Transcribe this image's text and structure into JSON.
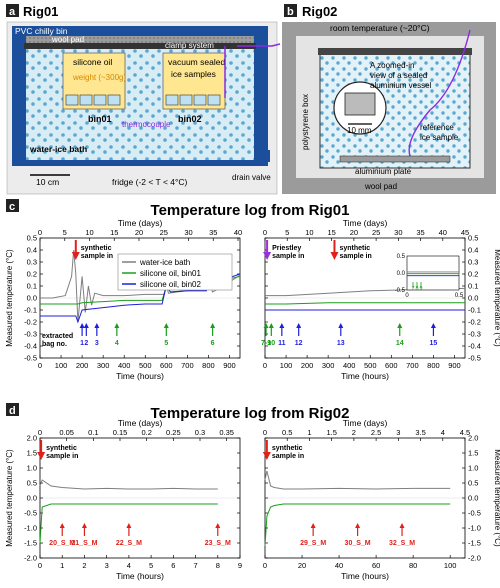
{
  "panels": {
    "a": {
      "letter": "a",
      "title": "Rig01",
      "bin": "PVC chilly bin",
      "wool": "wool pad",
      "clamp": "clamp system",
      "oil": "silicone oil",
      "weight": "weight (~300g)",
      "vac": "vacuum sealed",
      "ice": "ice samples",
      "bin01": "bin01",
      "bin02": "bin02",
      "tc": "thermocouple",
      "bath": "water-ice bath",
      "scale": "10 cm",
      "fridge": "fridge (-2 < T < 4°C)",
      "drain": "drain valve"
    },
    "b": {
      "letter": "b",
      "title": "Rig02",
      "room": "room temperature (~20°C)",
      "box": "polystyrene box",
      "zoom1": "A zoomed-in",
      "zoom2": "view of a sealed",
      "zoom3": "aluminium vessel",
      "mm": "10 mm",
      "ref1": "reference",
      "ref2": "ice sample",
      "plate": "aluminium plate",
      "wool": "wool pad"
    },
    "c": {
      "letter": "c",
      "title": "Temperature log from Rig01"
    },
    "d": {
      "letter": "d",
      "title": "Temperature log from Rig02"
    }
  },
  "colors": {
    "water": "#7f7f7f",
    "bin01": "#1a9e1a",
    "bin02": "#1f1fdb",
    "synthetic": "#e0201a",
    "priestley": "#9b30d9",
    "accent": "#8a2be2",
    "frame": "#1b4f9c"
  },
  "chart_data": [
    {
      "type": "line",
      "id": "c-left",
      "xlabel": "Time (hours)",
      "x2label": "Time (days)",
      "ylabel": "Measured temperature (°C)",
      "xlim": [
        0,
        950
      ],
      "ylim": [
        -0.5,
        0.5
      ],
      "xticks": [
        0,
        100,
        200,
        300,
        400,
        500,
        600,
        700,
        800,
        900
      ],
      "x2ticks": [
        0,
        5,
        10,
        15,
        20,
        25,
        30,
        35,
        40
      ],
      "yticks": [
        -0.5,
        -0.4,
        -0.3,
        -0.2,
        -0.1,
        0.0,
        0.1,
        0.2,
        0.3,
        0.4,
        0.5
      ],
      "legend": [
        "water-ice bath",
        "silicone oil, bin01",
        "silicone oil, bin02"
      ],
      "series": [
        {
          "name": "water-ice bath",
          "x": [
            0,
            60,
            120,
            150,
            160,
            170,
            180,
            200,
            215,
            230,
            245,
            260,
            300,
            400,
            500,
            590,
            600,
            610,
            650,
            700,
            760,
            790,
            800,
            820,
            870,
            950
          ],
          "y": [
            0.0,
            0.0,
            0.02,
            0.18,
            0.4,
            0.2,
            -0.2,
            0.18,
            -0.12,
            0.1,
            -0.06,
            0.04,
            0.02,
            0.02,
            0.03,
            0.03,
            0.12,
            0.04,
            0.05,
            0.06,
            0.07,
            0.1,
            0.16,
            0.05,
            0.1,
            0.19
          ]
        },
        {
          "name": "silicone oil, bin01",
          "x": [
            0,
            100,
            160,
            180,
            200,
            300,
            400,
            500,
            580,
            600,
            620,
            700,
            790,
            800,
            820,
            900,
            950
          ],
          "y": [
            -0.05,
            -0.05,
            -0.05,
            -0.05,
            -0.04,
            -0.03,
            -0.02,
            -0.02,
            -0.02,
            0.1,
            0.05,
            0.06,
            0.06,
            0.15,
            0.1,
            0.16,
            0.18
          ]
        },
        {
          "name": "silicone oil, bin02",
          "x": [
            0,
            100,
            170,
            180,
            200,
            300,
            400,
            500,
            580,
            600,
            620,
            700,
            790,
            800,
            820,
            900,
            950
          ],
          "y": [
            -0.15,
            -0.15,
            -0.15,
            -0.2,
            -0.1,
            -0.08,
            -0.06,
            -0.05,
            -0.05,
            0.1,
            0.05,
            0.06,
            0.06,
            0.15,
            0.1,
            0.17,
            0.2
          ]
        }
      ],
      "arrows": [
        {
          "x": 170,
          "label": "synthetic sample in",
          "color": "synthetic",
          "top": true
        },
        {
          "x": 200,
          "label": "1",
          "color": "bin02"
        },
        {
          "x": 220,
          "label": "2",
          "color": "bin02"
        },
        {
          "x": 270,
          "label": "3",
          "color": "bin02"
        },
        {
          "x": 365,
          "label": "4",
          "color": "bin01"
        },
        {
          "x": 600,
          "label": "5",
          "color": "bin01"
        },
        {
          "x": 820,
          "label": "6",
          "color": "bin01"
        }
      ],
      "note": "extracted bag no."
    },
    {
      "type": "line",
      "id": "c-right",
      "xlabel": "Time (hours)",
      "x2label": "Time (days)",
      "ylabel": "Measured temperature (°C)",
      "xlim": [
        0,
        950
      ],
      "ylim": [
        -0.5,
        0.5
      ],
      "xticks": [
        0,
        100,
        200,
        300,
        400,
        500,
        600,
        700,
        800,
        900
      ],
      "x2ticks": [
        0,
        5,
        10,
        15,
        20,
        25,
        30,
        35,
        40,
        45
      ],
      "yticks": [
        -0.5,
        -0.4,
        -0.3,
        -0.2,
        -0.1,
        0.0,
        0.1,
        0.2,
        0.3,
        0.4,
        0.5
      ],
      "series": [
        {
          "name": "water-ice bath",
          "x": [
            0,
            100,
            300,
            500,
            700,
            950
          ],
          "y": [
            0.02,
            0.02,
            0.04,
            0.06,
            0.07,
            0.08
          ]
        },
        {
          "name": "silicone oil, bin01",
          "x": [
            0,
            100,
            300,
            500,
            700,
            950
          ],
          "y": [
            -0.05,
            -0.05,
            -0.04,
            -0.04,
            -0.04,
            -0.04
          ]
        },
        {
          "name": "silicone oil, bin02",
          "x": [
            0,
            100,
            300,
            500,
            700,
            950
          ],
          "y": [
            -0.1,
            -0.1,
            -0.1,
            -0.1,
            -0.1,
            -0.1
          ]
        }
      ],
      "arrows": [
        {
          "x": 10,
          "label": "Priestley sample in",
          "color": "priestley",
          "top": true
        },
        {
          "x": 330,
          "label": "synthetic sample in",
          "color": "synthetic",
          "top": true
        },
        {
          "x": 5,
          "label": "7-9",
          "color": "bin01"
        },
        {
          "x": 30,
          "label": "10",
          "color": "bin01"
        },
        {
          "x": 80,
          "label": "11",
          "color": "bin02"
        },
        {
          "x": 160,
          "label": "12",
          "color": "bin02"
        },
        {
          "x": 360,
          "label": "13",
          "color": "bin02"
        },
        {
          "x": 640,
          "label": "14",
          "color": "bin01"
        },
        {
          "x": 800,
          "label": "15",
          "color": "bin02"
        }
      ],
      "inset": {
        "xlim": [
          0,
          0.5
        ],
        "ylim": [
          -0.5,
          0.5
        ],
        "xticks": [
          0,
          0.5
        ],
        "yticks": [
          -0.5,
          0,
          0.5
        ],
        "labels": [
          "7",
          "8",
          "9"
        ]
      }
    },
    {
      "type": "line",
      "id": "d-left",
      "xlabel": "Time (hours)",
      "x2label": "Time (days)",
      "ylabel": "Measured temperature (°C)",
      "xlim": [
        0,
        9
      ],
      "ylim": [
        -2.0,
        2.0
      ],
      "xticks": [
        0,
        1,
        2,
        3,
        4,
        5,
        6,
        7,
        8,
        9
      ],
      "x2ticks": [
        0,
        0.05,
        0.1,
        0.15,
        0.2,
        0.25,
        0.3,
        0.35
      ],
      "yticks": [
        -2.0,
        -1.5,
        -1.0,
        -0.5,
        0.0,
        0.5,
        1.0,
        1.5,
        2.0
      ],
      "series": [
        {
          "name": "water-ice bath",
          "x": [
            0,
            0.1,
            0.5,
            1,
            2,
            3,
            4,
            5,
            6,
            7,
            8
          ],
          "y": [
            0.4,
            0.6,
            0.4,
            0.35,
            0.3,
            0.32,
            0.3,
            0.3,
            0.32,
            0.3,
            0.3
          ]
        },
        {
          "name": "silicone oil, bin01",
          "x": [
            0,
            0.1,
            0.5,
            1,
            2,
            3,
            4,
            5,
            6,
            7,
            8
          ],
          "y": [
            -1.5,
            -0.3,
            -0.2,
            -0.2,
            -0.2,
            -0.2,
            -0.2,
            -0.2,
            -0.2,
            -0.2,
            -0.2
          ]
        }
      ],
      "arrows": [
        {
          "x": 0.05,
          "label": "synthetic sample in",
          "color": "synthetic",
          "top": true
        },
        {
          "x": 1,
          "label": "20_S_M",
          "color": "synthetic"
        },
        {
          "x": 2,
          "label": "21_S_M",
          "color": "synthetic"
        },
        {
          "x": 4,
          "label": "22_S_M",
          "color": "synthetic"
        },
        {
          "x": 8,
          "label": "23_S_M",
          "color": "synthetic"
        }
      ]
    },
    {
      "type": "line",
      "id": "d-right",
      "xlabel": "Time (hours)",
      "x2label": "Time (days)",
      "ylabel": "Measured temperature (°C)",
      "xlim": [
        0,
        108
      ],
      "ylim": [
        -2.0,
        2.0
      ],
      "xticks": [
        0,
        20,
        40,
        60,
        80,
        100
      ],
      "x2ticks": [
        0,
        0.5,
        1.0,
        1.5,
        2.0,
        2.5,
        3.0,
        3.5,
        4.0,
        4.5
      ],
      "yticks": [
        -2.0,
        -1.5,
        -1.0,
        -0.5,
        0.0,
        0.5,
        1.0,
        1.5,
        2.0
      ],
      "series": [
        {
          "name": "water-ice bath",
          "x": [
            0,
            1,
            3,
            5,
            10,
            20,
            40,
            60,
            80,
            100
          ],
          "y": [
            0.6,
            0.9,
            0.4,
            0.35,
            0.3,
            0.3,
            0.32,
            0.3,
            0.32,
            0.32
          ]
        },
        {
          "name": "silicone oil, bin01",
          "x": [
            0,
            1,
            3,
            5,
            10,
            20,
            40,
            60,
            80,
            100
          ],
          "y": [
            -1.6,
            -0.6,
            -0.3,
            -0.25,
            -0.2,
            -0.2,
            -0.2,
            -0.2,
            -0.2,
            -0.2
          ]
        }
      ],
      "arrows": [
        {
          "x": 1,
          "label": "synthetic sample in",
          "color": "synthetic",
          "top": true
        },
        {
          "x": 26,
          "label": "29_S_M",
          "color": "synthetic"
        },
        {
          "x": 50,
          "label": "30_S_M",
          "color": "synthetic"
        },
        {
          "x": 74,
          "label": "32_S_M",
          "color": "synthetic"
        }
      ]
    }
  ]
}
